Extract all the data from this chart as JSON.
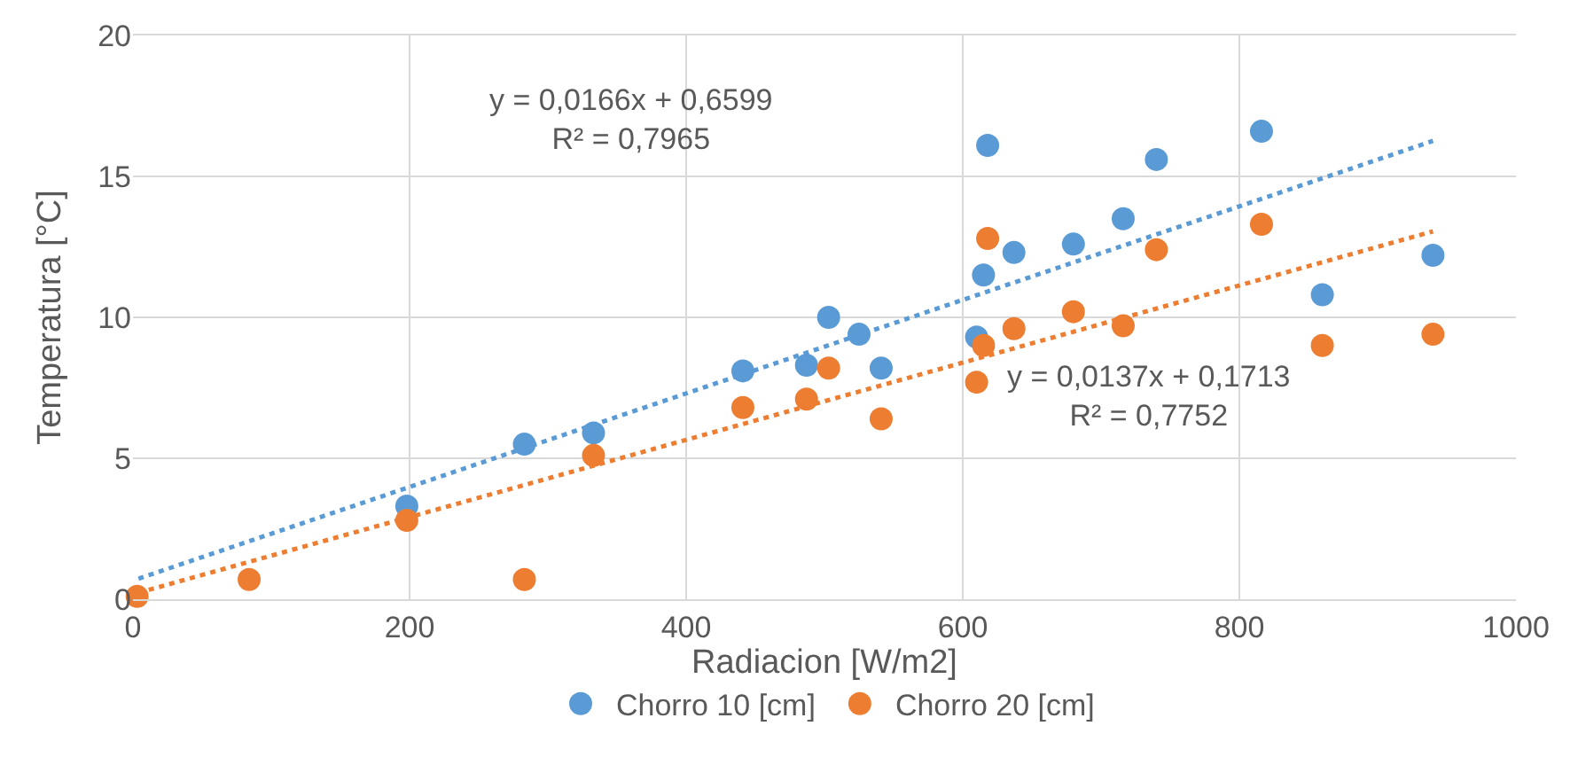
{
  "chart_data": {
    "type": "scatter",
    "xlabel": "Radiacion [W/m2]",
    "ylabel": "Temperatura [°C]",
    "xlim": [
      0,
      1000
    ],
    "xticks": [
      0,
      200,
      400,
      600,
      800,
      1000
    ],
    "ylim": [
      0,
      20
    ],
    "yticks": [
      0,
      5,
      10,
      15,
      20
    ],
    "grid": true,
    "legend": "bottom",
    "marker": "circle",
    "series": [
      {
        "name": "Chorro 10 [cm]",
        "color": "#5b9bd5",
        "x": [
          198,
          283,
          333,
          441,
          487,
          503,
          525,
          541,
          610,
          615,
          618,
          637,
          680,
          716,
          740,
          816,
          860,
          940
        ],
        "values": [
          3.3,
          5.5,
          5.9,
          8.1,
          8.3,
          10.0,
          9.4,
          8.2,
          9.3,
          11.5,
          16.1,
          12.3,
          12.6,
          13.5,
          15.6,
          16.6,
          10.8,
          12.2
        ]
      },
      {
        "name": "Chorro 20 [cm]",
        "color": "#ed7d31",
        "x": [
          3,
          84,
          198,
          283,
          333,
          441,
          487,
          503,
          541,
          610,
          615,
          618,
          637,
          680,
          716,
          740,
          816,
          860,
          940
        ],
        "values": [
          0.1,
          0.7,
          2.8,
          0.7,
          5.1,
          6.8,
          7.1,
          8.2,
          6.4,
          7.7,
          9.0,
          12.8,
          9.6,
          10.2,
          9.7,
          12.4,
          13.3,
          9.0,
          9.4
        ]
      },
      {
        "type": "line",
        "color": "#5b9bd5",
        "line_style": "dotted",
        "marker": "none",
        "x": [
          4,
          940
        ],
        "values": [
          0.73,
          16.26
        ]
      },
      {
        "type": "line",
        "color": "#ed7d31",
        "line_style": "dotted",
        "marker": "none",
        "x": [
          4,
          940
        ],
        "values": [
          0.23,
          13.05
        ]
      }
    ],
    "annotations": [
      "y = 0,0166x + 0,6599\nR² = 0,7965",
      "y = 0,0137x + 0,1713\nR² = 0,7752"
    ]
  }
}
